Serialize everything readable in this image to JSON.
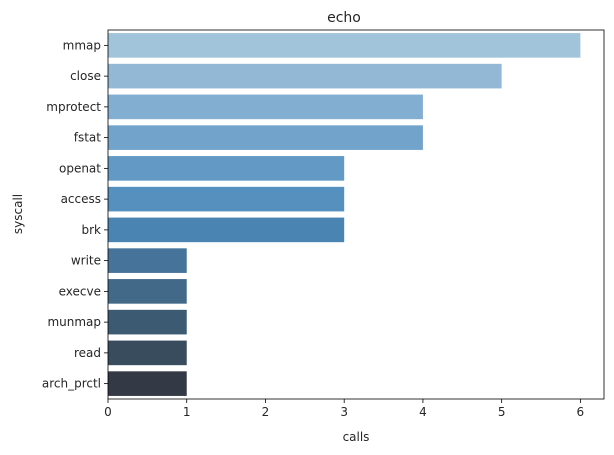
{
  "chart_data": {
    "type": "bar",
    "orientation": "horizontal",
    "title": "echo",
    "xlabel": "calls",
    "ylabel": "syscall",
    "xlim": [
      0,
      6.3
    ],
    "x_ticks": [
      0,
      1,
      2,
      3,
      4,
      5,
      6
    ],
    "grid": false,
    "categories": [
      "mmap",
      "close",
      "mprotect",
      "fstat",
      "openat",
      "access",
      "brk",
      "write",
      "execve",
      "munmap",
      "read",
      "arch_prctl"
    ],
    "values": [
      6,
      5,
      4,
      4,
      3,
      3,
      3,
      1,
      1,
      1,
      1,
      1
    ],
    "colors": [
      "#a2c4da",
      "#92b8d6",
      "#82aed2",
      "#72a4cb",
      "#6299c5",
      "#5590bf",
      "#4a84b3",
      "#457399",
      "#426a88",
      "#3c5b73",
      "#394c5e",
      "#343a45"
    ]
  }
}
